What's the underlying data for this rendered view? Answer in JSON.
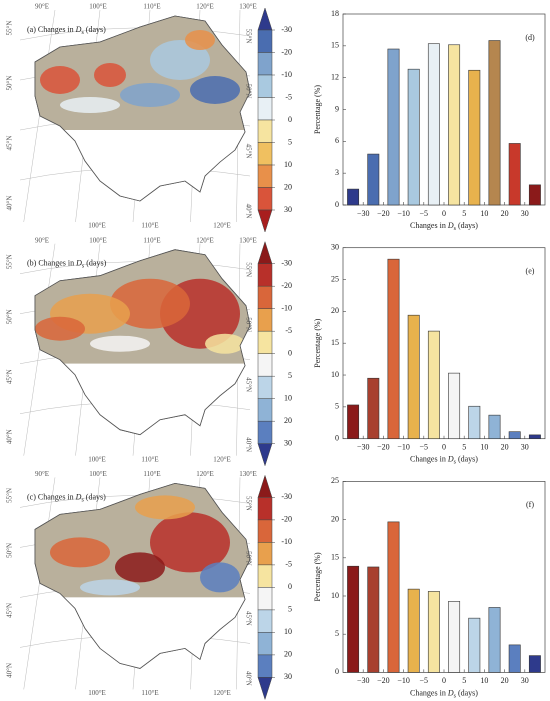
{
  "map_labels": {
    "lon_top": [
      "90°E",
      "100°E",
      "110°E",
      "120°E",
      "130°E"
    ],
    "lon_bottom": [
      "100°E",
      "110°E",
      "120°E"
    ],
    "lat": [
      "55°N",
      "50°N",
      "45°N",
      "40°N"
    ]
  },
  "colorbar_ticks": [
    -30,
    -20,
    -10,
    -5,
    0,
    5,
    10,
    20,
    30
  ],
  "maps": [
    {
      "label": [
        "(a) Changes in ",
        "D",
        "s",
        " (days)"
      ],
      "colors": [
        "#2e3a8c",
        "#4a6db0",
        "#7fa3cc",
        "#a9c9e0",
        "#e8f0f5",
        "#f6e4a0",
        "#f0c060",
        "#e8904a",
        "#d9543a",
        "#a81e1e"
      ]
    },
    {
      "label": [
        "(b) Changes in ",
        "D",
        "s",
        " (days)"
      ],
      "colors": [
        "#8b1a1a",
        "#b8302a",
        "#d9663a",
        "#e8a04d",
        "#f6e4a0",
        "#f5f5f5",
        "#bcd5e8",
        "#8fb3d6",
        "#5b7fbf",
        "#2e3a8c"
      ]
    },
    {
      "label": [
        "(c) Changes in ",
        "D",
        "s",
        " (days)"
      ],
      "colors": [
        "#8b1a1a",
        "#b8302a",
        "#d9663a",
        "#e8a04d",
        "#f6e4a0",
        "#f5f5f5",
        "#bcd5e8",
        "#8fb3d6",
        "#5b7fbf",
        "#2e3a8c"
      ]
    }
  ],
  "chart_data": [
    {
      "type": "bar",
      "panel": "(d)",
      "ylabel": "Percentage (%)",
      "xlabel": [
        "Changes in ",
        "D",
        "s",
        " (days)"
      ],
      "categories": [
        null,
        null,
        null,
        null,
        null,
        null,
        null,
        null,
        null,
        null
      ],
      "xtick_labels": [
        "−30",
        "−20",
        "−10",
        "−5",
        "0",
        "5",
        "10",
        "20",
        "30"
      ],
      "values": [
        1.5,
        4.8,
        14.7,
        12.8,
        15.2,
        15.1,
        12.7,
        15.5,
        5.8,
        1.9
      ],
      "colors": [
        "#2e3a8c",
        "#4a6db0",
        "#7fa3cc",
        "#a9c9e0",
        "#e8f0f5",
        "#f6e4a0",
        "#e8b24d",
        "#b5864f",
        "#c8392b",
        "#8b1a1a"
      ],
      "ylim": [
        0,
        18
      ],
      "yticks": [
        0,
        3,
        6,
        9,
        12,
        15,
        18
      ]
    },
    {
      "type": "bar",
      "panel": "(e)",
      "ylabel": "Percentage (%)",
      "xlabel": [
        "Changes in ",
        "D",
        "s",
        " (days)"
      ],
      "categories": [
        null,
        null,
        null,
        null,
        null,
        null,
        null,
        null,
        null,
        null
      ],
      "xtick_labels": [
        "−30",
        "−20",
        "−10",
        "−5",
        "0",
        "5",
        "10",
        "20",
        "30"
      ],
      "values": [
        5.3,
        9.5,
        28.2,
        19.4,
        16.9,
        10.3,
        5.1,
        3.7,
        1.1,
        0.6
      ],
      "colors": [
        "#8b1a1a",
        "#a8402f",
        "#d9663a",
        "#e8b24d",
        "#f6e4a0",
        "#f5f5f5",
        "#bcd5e8",
        "#8fb3d6",
        "#5b7fbf",
        "#2e3a8c"
      ],
      "ylim": [
        0,
        30
      ],
      "yticks": [
        0,
        5,
        10,
        15,
        20,
        25,
        30
      ]
    },
    {
      "type": "bar",
      "panel": "(f)",
      "ylabel": "Percentage (%)",
      "xlabel": [
        "Changes in ",
        "D",
        "s",
        " (days)"
      ],
      "categories": [
        null,
        null,
        null,
        null,
        null,
        null,
        null,
        null,
        null,
        null
      ],
      "xtick_labels": [
        "−30",
        "−20",
        "−10",
        "−5",
        "0",
        "5",
        "10",
        "20",
        "30"
      ],
      "values": [
        13.9,
        13.8,
        19.7,
        10.9,
        10.6,
        9.3,
        7.1,
        8.5,
        3.6,
        2.2
      ],
      "colors": [
        "#8b1a1a",
        "#a8402f",
        "#d9663a",
        "#e8b24d",
        "#f6e4a0",
        "#f5f5f5",
        "#bcd5e8",
        "#8fb3d6",
        "#5b7fbf",
        "#2e3a8c"
      ],
      "ylim": [
        0,
        25
      ],
      "yticks": [
        0,
        5,
        10,
        15,
        20,
        25
      ]
    }
  ]
}
